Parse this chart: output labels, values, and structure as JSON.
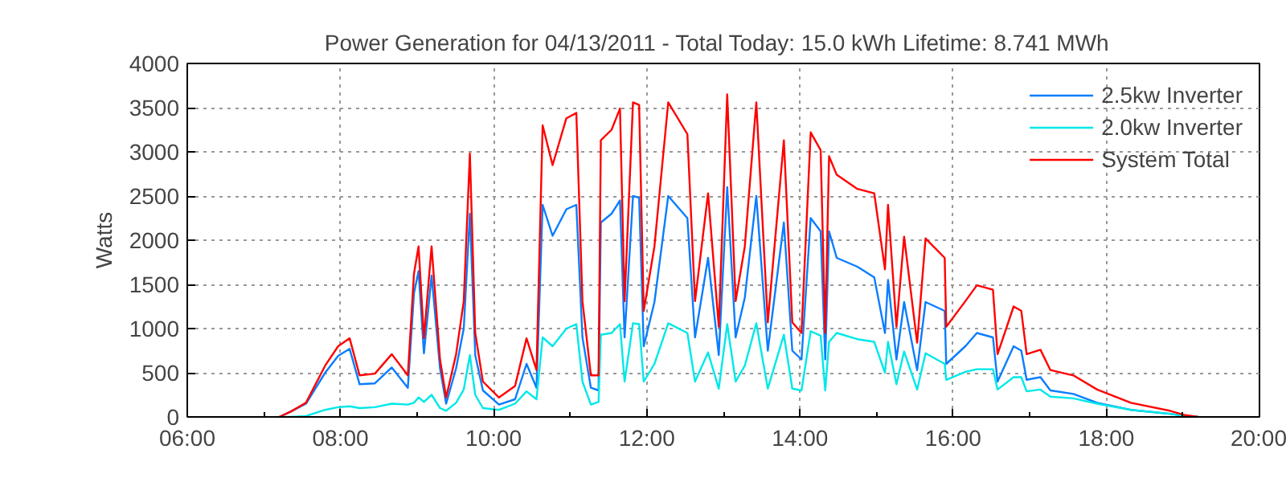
{
  "chart_data": {
    "type": "line",
    "title": "Power Generation for 04/13/2011 - Total Today: 15.0 kWh   Lifetime: 8.741 MWh",
    "ylabel": "Watts",
    "x": [
      7.2,
      7.35,
      7.55,
      7.8,
      7.97,
      8.12,
      8.25,
      8.45,
      8.67,
      8.88,
      8.96,
      9.02,
      9.09,
      9.19,
      9.3,
      9.38,
      9.51,
      9.61,
      9.69,
      9.76,
      9.86,
      10.07,
      10.28,
      10.43,
      10.56,
      10.64,
      10.77,
      10.95,
      11.08,
      11.16,
      11.27,
      11.37,
      11.4,
      11.54,
      11.65,
      11.71,
      11.82,
      11.9,
      11.96,
      12.1,
      12.28,
      12.53,
      12.63,
      12.8,
      12.94,
      13.05,
      13.16,
      13.28,
      13.43,
      13.58,
      13.79,
      13.9,
      14.02,
      14.14,
      14.27,
      14.33,
      14.38,
      14.48,
      14.75,
      14.97,
      15.11,
      15.15,
      15.26,
      15.36,
      15.53,
      15.64,
      15.89,
      15.91,
      16.16,
      16.31,
      16.52,
      16.58,
      16.79,
      16.89,
      16.96,
      17.14,
      17.27,
      17.57,
      17.88,
      18.32,
      18.83,
      19.03,
      19.2
    ],
    "series": [
      {
        "name": "2.5kw Inverter",
        "color": "#0a7dff",
        "values": [
          0,
          60,
          150,
          500,
          690,
          770,
          370,
          380,
          560,
          330,
          1400,
          1650,
          720,
          1600,
          550,
          150,
          550,
          1000,
          2300,
          700,
          300,
          140,
          200,
          600,
          330,
          2400,
          2050,
          2350,
          2400,
          900,
          330,
          300,
          2200,
          2300,
          2450,
          900,
          2500,
          2480,
          800,
          1300,
          2500,
          2250,
          900,
          1800,
          700,
          2600,
          900,
          1350,
          2500,
          750,
          2200,
          750,
          650,
          2250,
          2100,
          650,
          2100,
          1800,
          1700,
          1580,
          950,
          1550,
          650,
          1300,
          530,
          1300,
          1200,
          600,
          800,
          950,
          900,
          400,
          800,
          750,
          420,
          450,
          300,
          260,
          160,
          80,
          35,
          10,
          0
        ]
      },
      {
        "name": "2.0kw Inverter",
        "color": "#00e8e8",
        "values": [
          0,
          0,
          10,
          80,
          110,
          120,
          100,
          110,
          150,
          140,
          160,
          220,
          170,
          250,
          100,
          70,
          160,
          310,
          700,
          250,
          100,
          80,
          150,
          290,
          200,
          900,
          800,
          1000,
          1050,
          400,
          140,
          170,
          930,
          950,
          1050,
          400,
          1060,
          1050,
          400,
          600,
          1060,
          950,
          400,
          730,
          320,
          1050,
          400,
          580,
          1060,
          320,
          930,
          320,
          300,
          970,
          920,
          300,
          850,
          950,
          880,
          850,
          500,
          850,
          370,
          740,
          310,
          720,
          600,
          420,
          510,
          540,
          540,
          310,
          450,
          450,
          290,
          310,
          230,
          210,
          150,
          80,
          35,
          10,
          0
        ]
      },
      {
        "name": "System Total",
        "color": "#ff0000",
        "values": [
          0,
          60,
          160,
          580,
          800,
          890,
          470,
          490,
          710,
          470,
          1620,
          1930,
          890,
          1930,
          650,
          220,
          710,
          1310,
          2980,
          950,
          400,
          220,
          350,
          890,
          530,
          3300,
          2850,
          3380,
          3440,
          1310,
          470,
          470,
          3130,
          3250,
          3490,
          1310,
          3560,
          3530,
          1200,
          1930,
          3560,
          3200,
          1310,
          2530,
          1020,
          3650,
          1310,
          1930,
          3560,
          1070,
          3130,
          1070,
          950,
          3220,
          3020,
          950,
          2950,
          2740,
          2580,
          2530,
          1670,
          2400,
          1020,
          2040,
          840,
          2020,
          1800,
          1020,
          1310,
          1490,
          1440,
          710,
          1250,
          1200,
          710,
          760,
          530,
          470,
          310,
          160,
          70,
          20,
          0
        ]
      }
    ],
    "xlim": [
      6,
      20
    ],
    "xticks": [
      {
        "value": 6,
        "label": "06:00"
      },
      {
        "value": 7,
        "label": null
      },
      {
        "value": 8,
        "label": "08:00"
      },
      {
        "value": 9,
        "label": null
      },
      {
        "value": 10,
        "label": "10:00"
      },
      {
        "value": 11,
        "label": null
      },
      {
        "value": 12,
        "label": "12:00"
      },
      {
        "value": 13,
        "label": null
      },
      {
        "value": 14,
        "label": "14:00"
      },
      {
        "value": 15,
        "label": null
      },
      {
        "value": 16,
        "label": "16:00"
      },
      {
        "value": 17,
        "label": null
      },
      {
        "value": 18,
        "label": "18:00"
      },
      {
        "value": 19,
        "label": null
      },
      {
        "value": 20,
        "label": "20:00"
      }
    ],
    "ylim": [
      0,
      4000
    ],
    "yticks": [
      0,
      500,
      1000,
      1500,
      2000,
      2500,
      3000,
      3500,
      4000
    ],
    "grid": true,
    "legend": "top right",
    "marker": "none",
    "line_style": "solid"
  }
}
